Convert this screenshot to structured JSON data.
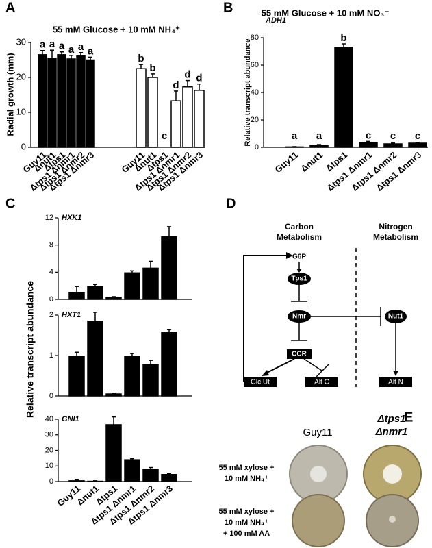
{
  "panel_letters": [
    "A",
    "B",
    "C",
    "D",
    "E"
  ],
  "chart_data": [
    {
      "type": "bar",
      "title": "55 mM Glucose + 10 mM NH₄⁺",
      "ylabel": "Radial growth (mm)",
      "categories": [
        "Guy11",
        "Δnut1",
        "Δtps1",
        "Δtps1 Δnmr1",
        "Δtps1 Δnmr2",
        "Δtps1 Δnmr3"
      ],
      "ylim": [
        0,
        30
      ],
      "yticks": [
        0,
        10,
        20,
        30
      ],
      "series": [
        {
          "color": "#000000",
          "values": [
            26.5,
            25.5,
            26.5,
            25.3,
            26.2,
            25.0
          ],
          "errors": [
            1.2,
            2.3,
            0.8,
            1.0,
            0.9,
            0.8
          ],
          "letters": [
            "a",
            "a",
            "a",
            "a",
            "a",
            "a"
          ]
        },
        {
          "color": "#ffffff",
          "values": [
            22.5,
            20.0,
            0,
            13.3,
            17.3,
            16.3
          ],
          "errors": [
            1.2,
            1.0,
            0,
            2.8,
            1.8,
            1.8
          ],
          "letters": [
            "b",
            "b",
            "c",
            "d",
            "d",
            "d"
          ]
        }
      ]
    },
    {
      "type": "bar",
      "title": "55 mM Glucose + 10 mM NO₃⁻",
      "ylabel": "Relative transcript abundance",
      "annotation": "ADH1",
      "categories": [
        "Guy11",
        "Δnut1",
        "Δtps1",
        "Δtps1 Δnmr1",
        "Δtps1 Δnmr2",
        "Δtps1 Δnmr3"
      ],
      "ylim": [
        0,
        80
      ],
      "yticks": [
        0,
        20,
        40,
        60,
        80
      ],
      "series": [
        {
          "color": "#000000",
          "values": [
            0.3,
            1.5,
            73,
            3.5,
            2.5,
            3.0
          ],
          "errors": [
            0.2,
            0.5,
            2.5,
            0.8,
            0.6,
            0.6
          ],
          "letters": [
            "a",
            "a",
            "b",
            "c",
            "c",
            "c"
          ]
        }
      ]
    },
    {
      "type": "multibar",
      "ylabel": "Relative transcript abundance",
      "categories": [
        "Guy11",
        "Δnut1",
        "Δtps1",
        "Δtps1 Δnmr1",
        "Δtps1 Δnmr2",
        "Δtps1 Δnmr3"
      ],
      "color": "#000000",
      "subplots": [
        {
          "annotation": "HXK1",
          "ylim": [
            0,
            12
          ],
          "yticks": [
            0,
            4,
            8,
            12
          ],
          "values": [
            1.0,
            1.9,
            0.3,
            3.9,
            4.6,
            9.2
          ],
          "errors": [
            0.9,
            0.3,
            0.1,
            0.3,
            1.0,
            1.5
          ]
        },
        {
          "annotation": "HXT1",
          "ylim": [
            0,
            2
          ],
          "yticks": [
            0,
            1,
            2
          ],
          "values": [
            0.98,
            1.85,
            0.05,
            0.97,
            0.78,
            1.58
          ],
          "errors": [
            0.1,
            0.22,
            0.02,
            0.08,
            0.1,
            0.06
          ]
        },
        {
          "annotation": "GNI1",
          "ylim": [
            0,
            40
          ],
          "yticks": [
            0,
            10,
            20,
            30,
            40
          ],
          "values": [
            0.5,
            0.2,
            36.5,
            14,
            8,
            4.5
          ],
          "errors": [
            0.6,
            0.3,
            5,
            0.7,
            1,
            0.5
          ]
        }
      ]
    }
  ],
  "diagram": {
    "carbon": [
      "Carbon",
      "Metabolism"
    ],
    "nitrogen": [
      "Nitrogen",
      "Metabolism"
    ],
    "nodes": [
      "G6P",
      "Tps1",
      "Nmr",
      "CCR",
      "Nut1",
      "Glc Ut",
      "Alt C",
      "Alt N"
    ]
  },
  "plates": {
    "columns": [
      "Guy11",
      [
        "Δtps1",
        "Δnmr1"
      ]
    ],
    "rows": [
      [
        "55 mM xylose +",
        "10 mM NH₄⁺"
      ],
      [
        "55 mM xylose +",
        "10 mM NH₄⁺",
        "+ 100 mM AA"
      ]
    ]
  }
}
